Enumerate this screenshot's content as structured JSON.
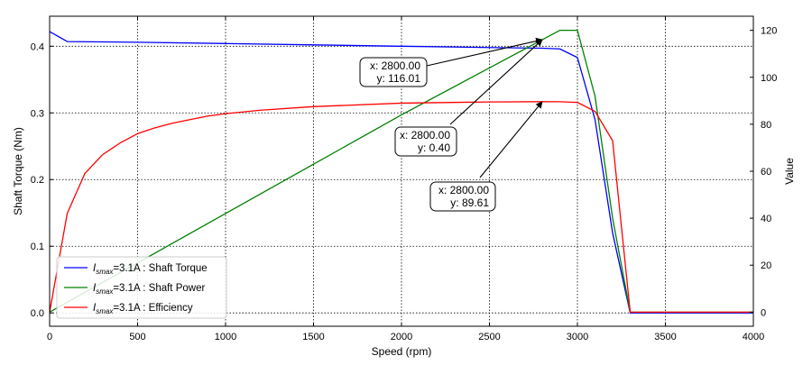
{
  "chart_data": {
    "type": "line",
    "xlabel": "Speed  (rpm)",
    "ylabel_left": "Shaft Torque  (Nm)",
    "ylabel_right": "Value",
    "xlim": [
      0,
      4000
    ],
    "ylim_left": [
      -0.02,
      0.445
    ],
    "ylim_right": [
      -6,
      126
    ],
    "x_ticks": [
      "0",
      "500",
      "1000",
      "1500",
      "2000",
      "2500",
      "3000",
      "3500",
      "4000"
    ],
    "y_left_ticks": [
      "0.0",
      "0.1",
      "0.2",
      "0.3",
      "0.4"
    ],
    "y_right_ticks": [
      "0",
      "20",
      "40",
      "60",
      "80",
      "100",
      "120"
    ],
    "grid": true,
    "legend_position": "lower-left",
    "series": [
      {
        "name": "Shaft Torque",
        "legend_prefix": "I",
        "legend_sub": "smax",
        "legend_rest": "=3.1A : Shaft Torque",
        "color": "#0000ff",
        "axis": "left",
        "x": [
          0,
          100,
          500,
          1000,
          1500,
          2000,
          2500,
          2800,
          2900,
          3000,
          3100,
          3200,
          3300,
          3400,
          3500,
          4000
        ],
        "y": [
          0.422,
          0.407,
          0.406,
          0.404,
          0.402,
          0.4,
          0.398,
          0.397,
          0.396,
          0.383,
          0.29,
          0.12,
          0.0,
          0.0,
          0.0,
          0.0
        ]
      },
      {
        "name": "Shaft Power",
        "legend_prefix": "I",
        "legend_sub": "smax",
        "legend_rest": "=3.1A : Shaft Power",
        "color": "#008000",
        "axis": "right",
        "x": [
          0,
          500,
          1000,
          1500,
          2000,
          2500,
          2800,
          2900,
          3000,
          3100,
          3200,
          3300,
          3400,
          3500,
          4000
        ],
        "y": [
          0,
          21,
          42,
          63,
          84,
          104,
          116.01,
          120,
          120,
          92,
          40,
          0,
          0,
          0,
          0
        ]
      },
      {
        "name": "Efficiency",
        "legend_prefix": "I",
        "legend_sub": "smax",
        "legend_rest": "=3.1A : Efficiency",
        "color": "#ff0000",
        "axis": "right",
        "x": [
          0,
          100,
          200,
          300,
          400,
          500,
          600,
          700,
          800,
          900,
          1000,
          1200,
          1500,
          2000,
          2500,
          2800,
          2900,
          3000,
          3100,
          3200,
          3300,
          3400,
          3500,
          4000
        ],
        "y": [
          0,
          42,
          59,
          67,
          72,
          76,
          78.5,
          80.5,
          82,
          83.5,
          84.5,
          86,
          87.5,
          89,
          89.5,
          89.61,
          89.6,
          89.3,
          85.5,
          73,
          0,
          0,
          0,
          0
        ]
      }
    ],
    "annotations": [
      {
        "lines": [
          "x: 2800.00",
          "y: 116.01"
        ],
        "target_x": 2800,
        "target_y": 116.01,
        "axis": "right"
      },
      {
        "lines": [
          "x: 2800.00",
          "y: 0.40"
        ],
        "target_x": 2800,
        "target_y": 116.01,
        "axis": "right"
      },
      {
        "lines": [
          "x: 2800.00",
          "y: 89.61"
        ],
        "target_x": 2800,
        "target_y": 89.61,
        "axis": "right"
      }
    ]
  }
}
